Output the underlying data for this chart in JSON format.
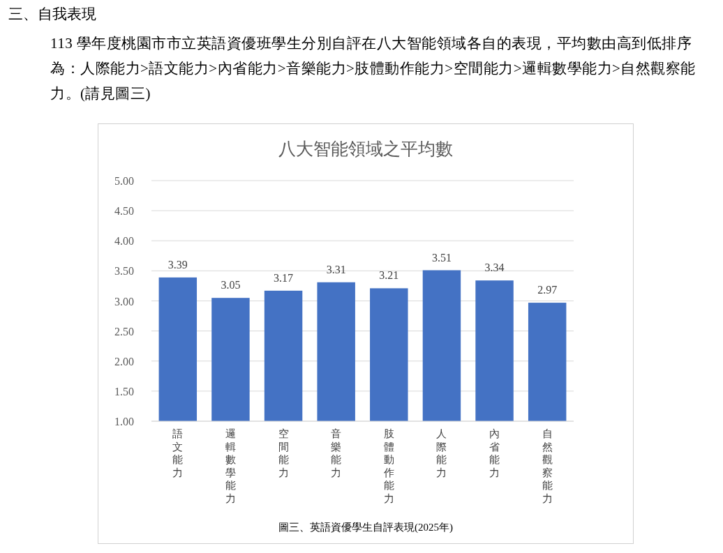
{
  "chart_data": {
    "type": "bar",
    "title": "八大智能領域之平均數",
    "categories": [
      "語文能力",
      "邏輯數學能力",
      "空間能力",
      "音樂能力",
      "肢體動作能力",
      "人際能力",
      "內省能力",
      "自然觀察能力"
    ],
    "values": [
      3.39,
      3.05,
      3.17,
      3.31,
      3.21,
      3.51,
      3.34,
      2.97
    ],
    "color": "#4472c4",
    "ylim": [
      1,
      5
    ],
    "yticks": [
      {
        "value": 1,
        "label": "1.00"
      },
      {
        "value": 1.5,
        "label": "1.50"
      },
      {
        "value": 2,
        "label": "2.00"
      },
      {
        "value": 2.5,
        "label": "2.50"
      },
      {
        "value": 3,
        "label": "3.00"
      },
      {
        "value": 3.5,
        "label": "3.50"
      },
      {
        "value": 4,
        "label": "4.00"
      },
      {
        "value": 4.5,
        "label": "4.50"
      },
      {
        "value": 5,
        "label": "5.00"
      }
    ],
    "grid": "y",
    "data_labels": true,
    "annotations": [
      "三、自我表現",
      "113 學年度桃園市市立英語資優班學生分別自評在八大智能領域各自的表現，平均數由高到低排序為：人際能力>語文能力>內省能力>音樂能力>肢體動作能力>空間能力>邏輯數學能力>自然觀察能力。(請見圖三)",
      "圖三、英語資優學生自評表現(2025年)"
    ]
  }
}
